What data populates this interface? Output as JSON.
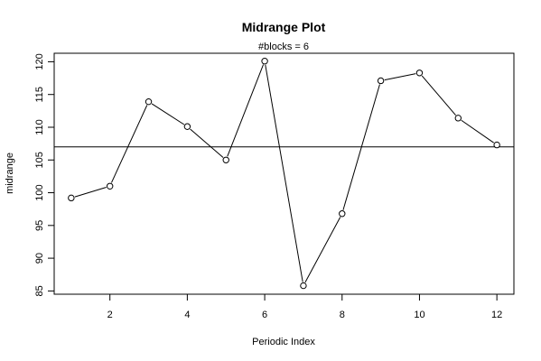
{
  "chart_data": {
    "type": "line",
    "title": "Midrange Plot",
    "subtitle": "#blocks =   6",
    "xlabel": "Periodic Index",
    "ylabel": "midrange",
    "x": [
      1,
      2,
      3,
      4,
      5,
      6,
      7,
      8,
      9,
      10,
      11,
      12
    ],
    "values": [
      99.2,
      101.0,
      113.9,
      110.1,
      105.0,
      120.1,
      85.8,
      96.8,
      117.1,
      118.3,
      111.4,
      107.3
    ],
    "reference_line": 107.0,
    "xlim": [
      0.56,
      12.44
    ],
    "ylim": [
      84.5,
      121.3
    ],
    "x_ticks": [
      2,
      4,
      6,
      8,
      10,
      12
    ],
    "y_ticks": [
      85,
      90,
      95,
      100,
      105,
      110,
      115,
      120
    ],
    "marker": "open-circle",
    "grid": false,
    "legend": "none"
  }
}
